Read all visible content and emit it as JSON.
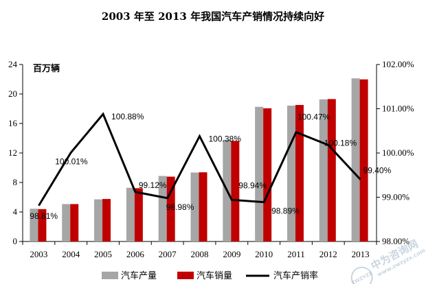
{
  "chart_data": {
    "type": "bar",
    "title": "2003 年至 2013 年我国汽车产销情况持续向好",
    "unit_label": "百万辆",
    "categories": [
      "2003",
      "2004",
      "2005",
      "2006",
      "2007",
      "2008",
      "2009",
      "2010",
      "2011",
      "2012",
      "2013"
    ],
    "series": [
      {
        "name": "汽车产量",
        "type": "bar",
        "axis": "left",
        "color": "#a6a6a6",
        "values": [
          4.44,
          5.07,
          5.71,
          7.28,
          8.88,
          9.35,
          13.79,
          18.26,
          18.42,
          19.27,
          22.12
        ]
      },
      {
        "name": "汽车销量",
        "type": "bar",
        "axis": "left",
        "color": "#c00000",
        "values": [
          4.39,
          5.07,
          5.76,
          7.22,
          8.79,
          9.38,
          13.64,
          18.06,
          18.51,
          19.31,
          21.98
        ]
      },
      {
        "name": "汽车产销率",
        "type": "line",
        "axis": "right",
        "color": "#000000",
        "values": [
          98.81,
          100.01,
          100.88,
          99.12,
          98.98,
          100.38,
          98.94,
          98.89,
          100.47,
          100.18,
          99.4
        ],
        "labels": [
          "98.81%",
          "100.01%",
          "100.88%",
          "99.12%",
          "98.98%",
          "100.38%",
          "98.94%",
          "98.89%",
          "100.47%",
          "100.18%",
          "99.40%"
        ]
      }
    ],
    "y_left": {
      "min": 0,
      "max": 24,
      "ticks": [
        "0",
        "4",
        "8",
        "12",
        "16",
        "20",
        "24"
      ]
    },
    "y_right": {
      "min": 98,
      "max": 102,
      "ticks": [
        "98.00%",
        "99.00%",
        "100.00%",
        "101.00%",
        "102.00%"
      ]
    },
    "legend_position": "bottom",
    "grid": false
  },
  "watermark": {
    "main": "中为咨询网",
    "sub": "www.zwzyzx.com",
    "badge": "ZWZYZX",
    "color": "#9fb3c8"
  }
}
